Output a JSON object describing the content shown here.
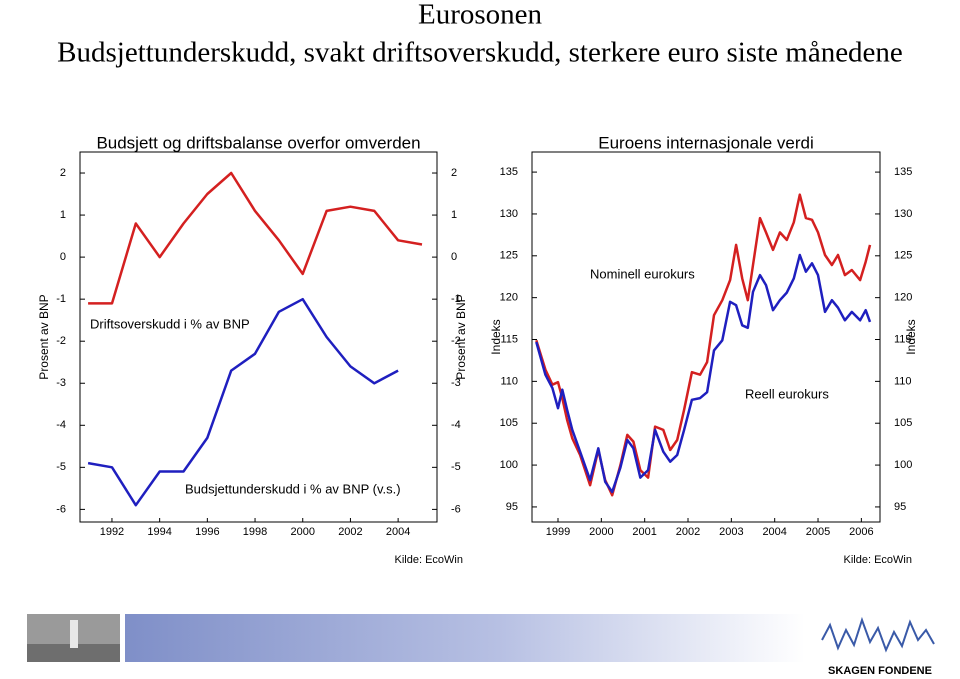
{
  "title": "Eurosonen",
  "subtitle": "Budsjettunderskudd, svakt driftsoverskudd, sterkere euro siste månedene",
  "chart_data": [
    {
      "type": "line",
      "title": "Budsjett og driftsbalanse overfor omverden",
      "ylabel": "Prosent av BNP",
      "y2label": "Prosent av BNP",
      "source": "Kilde: EcoWin",
      "x": [
        1991,
        1992,
        1993,
        1994,
        1995,
        1996,
        1997,
        1998,
        1999,
        2000,
        2001,
        2002,
        2003,
        2004,
        2005
      ],
      "series": [
        {
          "name": "Driftsoverskudd i % av BNP",
          "color": "#d42020",
          "values": [
            -1.1,
            -1.1,
            0.8,
            0.0,
            0.8,
            1.5,
            2.0,
            1.1,
            0.4,
            -0.4,
            1.1,
            1.2,
            1.1,
            0.4,
            0.3
          ]
        },
        {
          "name": "Budsjettunderskudd i % av BNP (v.s.)",
          "color": "#1f1fbf",
          "values": [
            -4.9,
            -5.0,
            -5.9,
            -5.1,
            -5.1,
            -4.3,
            -2.7,
            -2.3,
            -1.3,
            -1.0,
            -1.9,
            -2.6,
            -3.0,
            -2.7,
            null
          ]
        }
      ],
      "xlim": [
        1990.66,
        2005.63
      ],
      "xticks": [
        1992,
        1994,
        1996,
        1998,
        2000,
        2002,
        2004
      ],
      "ylim": [
        -6.3,
        2.5
      ],
      "yticks": [
        -6,
        -5,
        -4,
        -3,
        -2,
        -1,
        0,
        1,
        2
      ],
      "y2lim": [
        -6.3,
        2.5
      ],
      "y2ticks": [
        -6,
        -5,
        -4,
        -3,
        -2,
        -1,
        0,
        1,
        2
      ]
    },
    {
      "type": "line",
      "title": "Euroens internasjonale verdi",
      "ylabel": "Indeks",
      "y2label": "Indeks",
      "source": "Kilde: EcoWin",
      "x": [
        1999.0,
        1999.21,
        1999.37,
        1999.5,
        1999.6,
        1999.71,
        1999.83,
        2000.01,
        2000.24,
        2000.43,
        2000.59,
        2000.75,
        2000.94,
        2001.1,
        2001.24,
        2001.4,
        2001.58,
        2001.74,
        2001.93,
        2002.09,
        2002.25,
        2002.41,
        2002.59,
        2002.78,
        2002.94,
        2003.1,
        2003.29,
        2003.47,
        2003.61,
        2003.75,
        2003.88,
        2004.0,
        2004.16,
        2004.3,
        2004.46,
        2004.62,
        2004.78,
        2004.94,
        2005.08,
        2005.22,
        2005.36,
        2005.5,
        2005.66,
        2005.82,
        2005.96,
        2006.12,
        2006.28,
        2006.47,
        2006.6,
        2006.7
      ],
      "series": [
        {
          "name": "Nominell eurokurs",
          "color": "#d42020",
          "values": [
            114.9,
            111.4,
            109.6,
            109.9,
            108.0,
            105.4,
            103.2,
            101.2,
            97.6,
            101.8,
            98.2,
            96.4,
            100.0,
            103.6,
            102.8,
            99.4,
            98.5,
            104.6,
            104.2,
            101.8,
            103.0,
            106.6,
            111.1,
            110.8,
            112.3,
            117.9,
            119.7,
            122.1,
            126.3,
            122.3,
            119.7,
            123.9,
            129.5,
            127.8,
            125.7,
            127.8,
            126.9,
            129.0,
            132.3,
            129.5,
            129.3,
            127.8,
            125.1,
            123.9,
            125.1,
            122.7,
            123.3,
            122.1,
            124.3,
            126.3
          ]
        },
        {
          "name": "Reell eurokurs",
          "color": "#1f1fbf",
          "values": [
            114.7,
            110.8,
            109.2,
            106.8,
            109.0,
            106.6,
            104.2,
            101.6,
            98.2,
            102.0,
            98.0,
            96.8,
            99.7,
            103.0,
            102.0,
            98.5,
            99.4,
            104.2,
            101.6,
            100.4,
            101.2,
            104.2,
            107.8,
            108.0,
            108.7,
            113.7,
            114.9,
            119.5,
            119.1,
            116.7,
            116.4,
            120.7,
            122.7,
            121.5,
            118.5,
            119.7,
            120.6,
            122.3,
            125.1,
            123.1,
            124.1,
            122.7,
            118.3,
            119.7,
            118.8,
            117.3,
            118.3,
            117.3,
            118.5,
            117.1
          ]
        }
      ],
      "xlim": [
        1998.9,
        2006.93
      ],
      "xticks": [
        {
          "value": 1999.5,
          "label": "1999"
        },
        {
          "value": 2000.5,
          "label": "2000"
        },
        {
          "value": 2001.5,
          "label": "2001"
        },
        {
          "value": 2002.5,
          "label": "2002"
        },
        {
          "value": 2003.5,
          "label": "2003"
        },
        {
          "value": 2004.5,
          "label": "2004"
        },
        {
          "value": 2005.5,
          "label": "2005"
        },
        {
          "value": 2006.5,
          "label": "2006"
        }
      ],
      "ylim": [
        93.2,
        137.4
      ],
      "yticks": [
        95,
        100,
        105,
        110,
        115,
        120,
        125,
        130,
        135
      ],
      "y2lim": [
        93.2,
        137.4
      ],
      "y2ticks": [
        95,
        100,
        105,
        110,
        115,
        120,
        125,
        130,
        135
      ]
    }
  ],
  "footer": {
    "logo": "SKAGEN FONDENE"
  }
}
